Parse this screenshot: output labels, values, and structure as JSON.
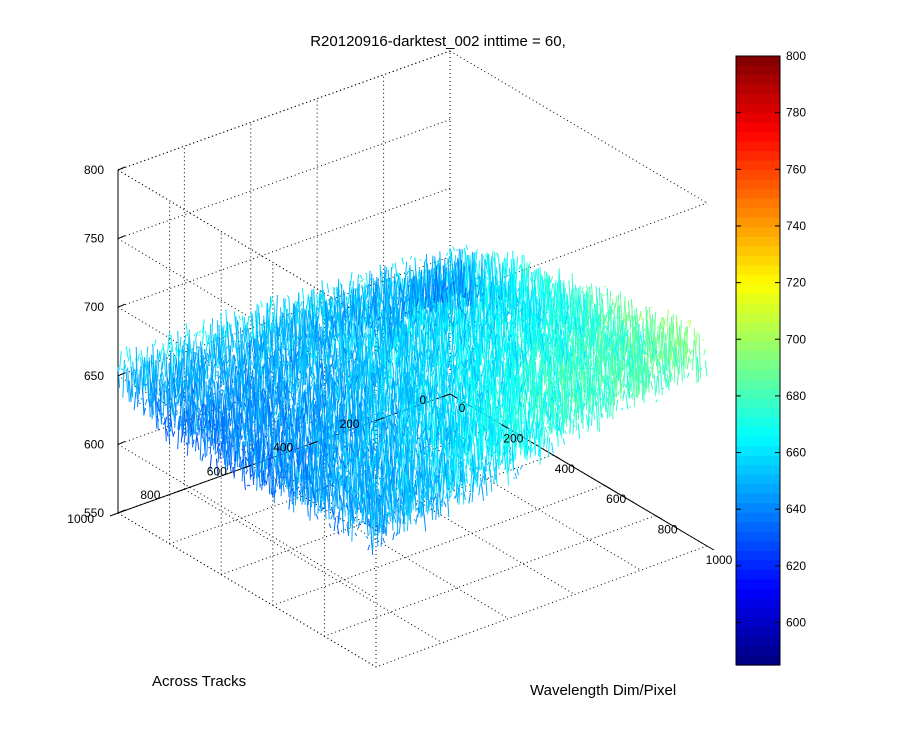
{
  "chart_data": {
    "type": "surface",
    "title": "R20120916-darktest_002 inttime = 60,",
    "xlabel": "Wavelength Dim/Pixel",
    "ylabel": "Across Tracks",
    "zlabel": "",
    "xlim": [
      0,
      1000
    ],
    "ylim": [
      0,
      1000
    ],
    "zlim": [
      550,
      800
    ],
    "x_ticks": [
      "0",
      "200",
      "400",
      "600",
      "800",
      "1000"
    ],
    "y_ticks": [
      "0",
      "200",
      "400",
      "600",
      "800",
      "1000"
    ],
    "z_ticks": [
      "550",
      "600",
      "650",
      "700",
      "750",
      "800"
    ],
    "grid": true,
    "colormap": "jet",
    "colorbar": {
      "range": [
        585,
        800
      ],
      "ticks": [
        "600",
        "620",
        "640",
        "660",
        "680",
        "700",
        "720",
        "740",
        "760",
        "780",
        "800"
      ]
    },
    "surface_z_grid": {
      "x": [
        0,
        200,
        400,
        600,
        800,
        1000
      ],
      "y": [
        0,
        200,
        400,
        600,
        800,
        1000
      ],
      "z": [
        [
          640,
          660,
          668,
          676,
          684,
          690
        ],
        [
          645,
          658,
          665,
          672,
          680,
          686
        ],
        [
          650,
          655,
          660,
          665,
          672,
          678
        ],
        [
          652,
          650,
          652,
          656,
          660,
          664
        ],
        [
          653,
          645,
          645,
          648,
          652,
          656
        ],
        [
          650,
          642,
          640,
          644,
          648,
          650
        ]
      ]
    }
  }
}
